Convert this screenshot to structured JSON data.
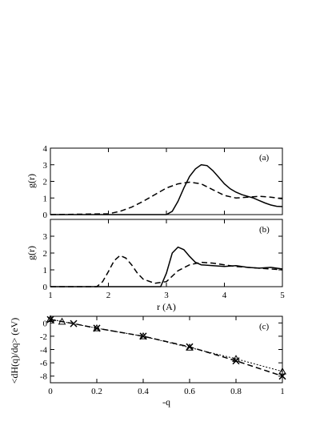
{
  "chart_data": [
    {
      "type": "line",
      "panel": "(a)",
      "xlabel": "",
      "ylabel": "g(r)",
      "xlim": [
        1,
        5
      ],
      "ylim": [
        0,
        4
      ],
      "xticks": [
        1,
        2,
        3,
        4,
        5
      ],
      "yticks": [
        0,
        1,
        2,
        3,
        4
      ],
      "grid": false,
      "series": [
        {
          "style": "solid",
          "x": [
            1.0,
            3.0,
            3.1,
            3.2,
            3.3,
            3.4,
            3.5,
            3.6,
            3.7,
            3.8,
            3.9,
            4.0,
            4.1,
            4.2,
            4.3,
            4.4,
            4.5,
            4.6,
            4.7,
            4.8,
            4.9,
            5.0
          ],
          "y": [
            0.0,
            0.0,
            0.2,
            0.8,
            1.6,
            2.3,
            2.75,
            3.0,
            2.95,
            2.65,
            2.25,
            1.85,
            1.55,
            1.35,
            1.2,
            1.1,
            1.0,
            0.85,
            0.7,
            0.58,
            0.5,
            0.48
          ]
        },
        {
          "style": "dashed",
          "x": [
            1.0,
            2.0,
            2.2,
            2.4,
            2.6,
            2.8,
            3.0,
            3.2,
            3.4,
            3.6,
            3.8,
            4.0,
            4.2,
            4.4,
            4.6,
            4.8,
            5.0
          ],
          "y": [
            0.0,
            0.05,
            0.2,
            0.45,
            0.8,
            1.2,
            1.6,
            1.85,
            1.95,
            1.85,
            1.5,
            1.15,
            1.0,
            1.05,
            1.1,
            1.05,
            0.95
          ]
        }
      ]
    },
    {
      "type": "line",
      "panel": "(b)",
      "xlabel": "r (A)",
      "ylabel": "g(r)",
      "xlim": [
        1,
        5
      ],
      "ylim": [
        0,
        4
      ],
      "xticks": [
        1,
        2,
        3,
        4,
        5
      ],
      "yticks": [
        0,
        1,
        2,
        3
      ],
      "grid": false,
      "series": [
        {
          "style": "solid",
          "x": [
            1.0,
            2.9,
            3.0,
            3.1,
            3.2,
            3.3,
            3.4,
            3.5,
            3.6,
            3.8,
            4.0,
            4.2,
            4.4,
            4.6,
            4.8,
            5.0
          ],
          "y": [
            0.0,
            0.0,
            0.8,
            2.0,
            2.35,
            2.2,
            1.8,
            1.45,
            1.3,
            1.25,
            1.2,
            1.25,
            1.15,
            1.1,
            1.15,
            1.05
          ]
        },
        {
          "style": "dashed",
          "x": [
            1.0,
            1.8,
            1.9,
            2.0,
            2.1,
            2.2,
            2.3,
            2.4,
            2.5,
            2.6,
            2.8,
            3.0,
            3.2,
            3.4,
            3.6,
            3.8,
            4.0,
            4.2,
            4.4,
            4.6,
            4.8,
            5.0
          ],
          "y": [
            0.0,
            0.0,
            0.3,
            0.9,
            1.55,
            1.85,
            1.7,
            1.3,
            0.8,
            0.45,
            0.2,
            0.3,
            0.95,
            1.3,
            1.45,
            1.4,
            1.3,
            1.2,
            1.15,
            1.1,
            1.05,
            1.0
          ]
        }
      ]
    },
    {
      "type": "line",
      "panel": "(c)",
      "xlabel": "-q",
      "ylabel": "<dH(q)/dq> (eV)",
      "xlim": [
        0,
        1
      ],
      "ylim": [
        -9,
        1
      ],
      "xticks": [
        0,
        0.2,
        0.4,
        0.6,
        0.8,
        1
      ],
      "yticks": [
        0,
        -2,
        -4,
        -6,
        -8
      ],
      "grid": false,
      "series": [
        {
          "style": "dashed-cross",
          "marker": "cross",
          "x": [
            0.0,
            0.1,
            0.2,
            0.4,
            0.6,
            0.8,
            1.0
          ],
          "y": [
            0.5,
            -0.1,
            -0.8,
            -2.0,
            -3.6,
            -5.7,
            -8.0
          ]
        },
        {
          "style": "dotted-triangle",
          "marker": "triangle",
          "x": [
            0.0,
            0.05,
            0.2,
            0.4,
            0.6,
            0.8,
            1.0
          ],
          "y": [
            0.6,
            0.2,
            -0.8,
            -2.0,
            -3.7,
            -5.4,
            -7.3
          ]
        }
      ]
    }
  ]
}
